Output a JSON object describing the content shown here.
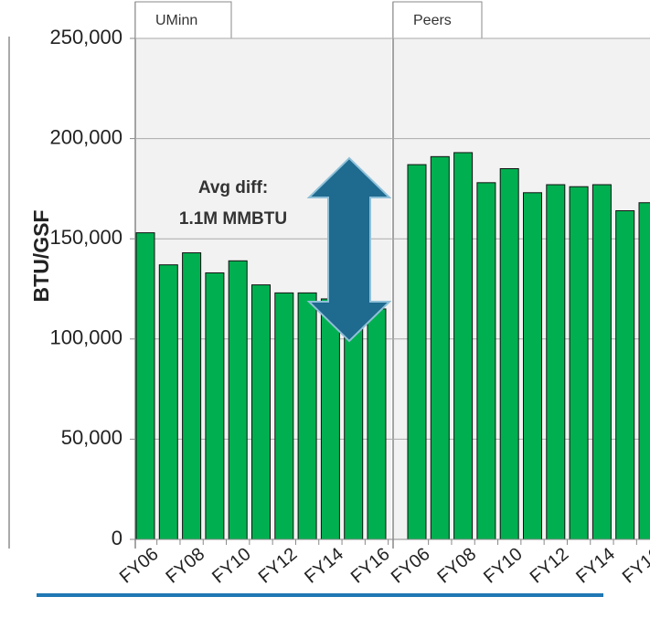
{
  "chart_data": {
    "type": "bar",
    "y_label": "BTU/GSF",
    "categories": [
      "FY06",
      null,
      "FY08",
      null,
      "FY10",
      null,
      "FY12",
      null,
      "FY14",
      null,
      "FY16"
    ],
    "panels": [
      {
        "label": "UMinn",
        "values": [
          153000,
          137000,
          143000,
          133000,
          139000,
          127000,
          123000,
          123000,
          120000,
          120000,
          115000
        ]
      },
      {
        "label": "Peers",
        "values": [
          187000,
          191000,
          193000,
          178000,
          185000,
          173000,
          177000,
          176000,
          177000,
          164000,
          168000
        ]
      }
    ],
    "color": "#00b050",
    "ylim": [
      0,
      250000
    ],
    "yticks": [
      0,
      {
        "value": 50000,
        "label": "50,000"
      },
      {
        "value": 100000,
        "label": "100,000"
      },
      {
        "value": 150000,
        "label": "150,000"
      },
      {
        "value": 200000,
        "label": "200,000"
      },
      {
        "value": 250000,
        "label": "250,000"
      }
    ],
    "grid": true,
    "annotation": [
      "Avg diff:",
      "1.1M MMBTU"
    ]
  }
}
